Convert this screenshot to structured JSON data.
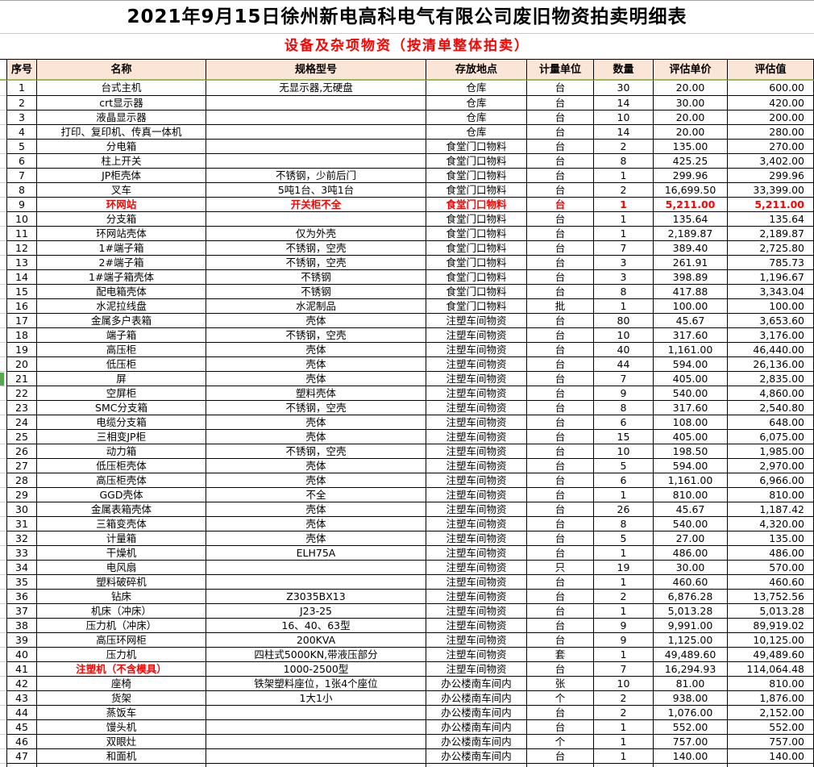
{
  "page": {
    "title": "2021年9月15日徐州新电高科电气有限公司废旧物资拍卖明细表",
    "subtitle": "设备及杂项物资（按清单整体拍卖）"
  },
  "colors": {
    "header_bg": "#FBE5D6",
    "header_underline_green": "#9BBB59",
    "highlight_red": "#FF0000",
    "row_marker_green": "#55A84F"
  },
  "table": {
    "headers": [
      "序号",
      "名称",
      "规格型号",
      "存放地点",
      "计量单位",
      "数量",
      "评估单价",
      "评估值"
    ],
    "rows": [
      {
        "no": "1",
        "name": "台式主机",
        "spec": "无显示器,无硬盘",
        "loc": "仓库",
        "unit": "台",
        "qty": "30",
        "price": "20.00",
        "value": "600.00"
      },
      {
        "no": "2",
        "name": "crt显示器",
        "spec": "",
        "loc": "仓库",
        "unit": "台",
        "qty": "14",
        "price": "30.00",
        "value": "420.00"
      },
      {
        "no": "3",
        "name": "液晶显示器",
        "spec": "",
        "loc": "仓库",
        "unit": "台",
        "qty": "10",
        "price": "20.00",
        "value": "200.00"
      },
      {
        "no": "4",
        "name": "打印、复印机、传真一体机",
        "spec": "",
        "loc": "仓库",
        "unit": "台",
        "qty": "14",
        "price": "20.00",
        "value": "280.00"
      },
      {
        "no": "5",
        "name": "分电箱",
        "spec": "",
        "loc": "食堂门口物料",
        "unit": "台",
        "qty": "2",
        "price": "135.00",
        "value": "270.00"
      },
      {
        "no": "6",
        "name": "柱上开关",
        "spec": "",
        "loc": "食堂门口物料",
        "unit": "台",
        "qty": "8",
        "price": "425.25",
        "value": "3,402.00"
      },
      {
        "no": "7",
        "name": "JP柜壳体",
        "spec": "不锈钢，少前后门",
        "loc": "食堂门口物料",
        "unit": "台",
        "qty": "1",
        "price": "299.96",
        "value": "299.96"
      },
      {
        "no": "8",
        "name": "叉车",
        "spec": "5吨1台、3吨1台",
        "loc": "食堂门口物料",
        "unit": "台",
        "qty": "2",
        "price": "16,699.50",
        "value": "33,399.00"
      },
      {
        "no": "9",
        "name": "环网站",
        "spec": "开关柜不全",
        "loc": "食堂门口物料",
        "unit": "台",
        "qty": "1",
        "price": "5,211.00",
        "value": "5,211.00",
        "highlight": "row"
      },
      {
        "no": "10",
        "name": "分支箱",
        "spec": "",
        "loc": "食堂门口物料",
        "unit": "台",
        "qty": "1",
        "price": "135.64",
        "value": "135.64"
      },
      {
        "no": "11",
        "name": "环网站壳体",
        "spec": "仅为外壳",
        "loc": "食堂门口物料",
        "unit": "台",
        "qty": "1",
        "price": "2,189.87",
        "value": "2,189.87"
      },
      {
        "no": "12",
        "name": "1#端子箱",
        "spec": "不锈钢，空壳",
        "loc": "食堂门口物料",
        "unit": "台",
        "qty": "7",
        "price": "389.40",
        "value": "2,725.80"
      },
      {
        "no": "13",
        "name": "2#端子箱",
        "spec": "不锈钢，空壳",
        "loc": "食堂门口物料",
        "unit": "台",
        "qty": "3",
        "price": "261.91",
        "value": "785.73"
      },
      {
        "no": "14",
        "name": "1#端子箱壳体",
        "spec": "不锈钢",
        "loc": "食堂门口物料",
        "unit": "台",
        "qty": "3",
        "price": "398.89",
        "value": "1,196.67"
      },
      {
        "no": "15",
        "name": "配电箱壳体",
        "spec": "不锈钢",
        "loc": "食堂门口物料",
        "unit": "台",
        "qty": "8",
        "price": "417.88",
        "value": "3,343.04"
      },
      {
        "no": "16",
        "name": "水泥拉线盘",
        "spec": "水泥制品",
        "loc": "食堂门口物料",
        "unit": "批",
        "qty": "1",
        "price": "100.00",
        "value": "100.00"
      },
      {
        "no": "17",
        "name": "金属多户表箱",
        "spec": "壳体",
        "loc": "注塑车间物资",
        "unit": "台",
        "qty": "80",
        "price": "45.67",
        "value": "3,653.60"
      },
      {
        "no": "18",
        "name": "端子箱",
        "spec": "不锈钢，空壳",
        "loc": "注塑车间物资",
        "unit": "台",
        "qty": "10",
        "price": "317.60",
        "value": "3,176.00"
      },
      {
        "no": "19",
        "name": "高压柜",
        "spec": "壳体",
        "loc": "注塑车间物资",
        "unit": "台",
        "qty": "40",
        "price": "1,161.00",
        "value": "46,440.00"
      },
      {
        "no": "20",
        "name": "低压柜",
        "spec": "壳体",
        "loc": "注塑车间物资",
        "unit": "台",
        "qty": "44",
        "price": "594.00",
        "value": "26,136.00"
      },
      {
        "no": "21",
        "name": "屏",
        "spec": "壳体",
        "loc": "注塑车间物资",
        "unit": "台",
        "qty": "7",
        "price": "405.00",
        "value": "2,835.00"
      },
      {
        "no": "22",
        "name": "空屏柜",
        "spec": "塑料壳体",
        "loc": "注塑车间物资",
        "unit": "台",
        "qty": "9",
        "price": "540.00",
        "value": "4,860.00"
      },
      {
        "no": "23",
        "name": "SMC分支箱",
        "spec": "不锈钢，空壳",
        "loc": "注塑车间物资",
        "unit": "台",
        "qty": "8",
        "price": "317.60",
        "value": "2,540.80"
      },
      {
        "no": "24",
        "name": "电缆分支箱",
        "spec": "壳体",
        "loc": "注塑车间物资",
        "unit": "台",
        "qty": "6",
        "price": "108.00",
        "value": "648.00"
      },
      {
        "no": "25",
        "name": "三相变JP柜",
        "spec": "壳体",
        "loc": "注塑车间物资",
        "unit": "台",
        "qty": "15",
        "price": "405.00",
        "value": "6,075.00"
      },
      {
        "no": "26",
        "name": "动力箱",
        "spec": "不锈钢，空壳",
        "loc": "注塑车间物资",
        "unit": "台",
        "qty": "10",
        "price": "198.50",
        "value": "1,985.00"
      },
      {
        "no": "27",
        "name": "低压柜壳体",
        "spec": "壳体",
        "loc": "注塑车间物资",
        "unit": "台",
        "qty": "5",
        "price": "594.00",
        "value": "2,970.00"
      },
      {
        "no": "28",
        "name": "高压柜壳体",
        "spec": "壳体",
        "loc": "注塑车间物资",
        "unit": "台",
        "qty": "6",
        "price": "1,161.00",
        "value": "6,966.00"
      },
      {
        "no": "29",
        "name": "GGD壳体",
        "spec": "不全",
        "loc": "注塑车间物资",
        "unit": "台",
        "qty": "1",
        "price": "810.00",
        "value": "810.00"
      },
      {
        "no": "30",
        "name": "金属表箱壳体",
        "spec": "壳体",
        "loc": "注塑车间物资",
        "unit": "台",
        "qty": "26",
        "price": "45.67",
        "value": "1,187.42"
      },
      {
        "no": "31",
        "name": "三箱变壳体",
        "spec": "壳体",
        "loc": "注塑车间物资",
        "unit": "台",
        "qty": "8",
        "price": "540.00",
        "value": "4,320.00"
      },
      {
        "no": "32",
        "name": "计量箱",
        "spec": "壳体",
        "loc": "注塑车间物资",
        "unit": "台",
        "qty": "5",
        "price": "27.00",
        "value": "135.00"
      },
      {
        "no": "33",
        "name": "干燥机",
        "spec": "ELH75A",
        "loc": "注塑车间物资",
        "unit": "台",
        "qty": "1",
        "price": "486.00",
        "value": "486.00"
      },
      {
        "no": "34",
        "name": "电风扇",
        "spec": "",
        "loc": "注塑车间物资",
        "unit": "只",
        "qty": "19",
        "price": "30.00",
        "value": "570.00"
      },
      {
        "no": "35",
        "name": "塑料破碎机",
        "spec": "",
        "loc": "注塑车间物资",
        "unit": "台",
        "qty": "1",
        "price": "460.60",
        "value": "460.60"
      },
      {
        "no": "36",
        "name": "钻床",
        "spec": "Z3035BX13",
        "loc": "注塑车间物资",
        "unit": "台",
        "qty": "2",
        "price": "6,876.28",
        "value": "13,752.56"
      },
      {
        "no": "37",
        "name": "机床（冲床）",
        "spec": "J23-25",
        "loc": "注塑车间物资",
        "unit": "台",
        "qty": "1",
        "price": "5,013.28",
        "value": "5,013.28"
      },
      {
        "no": "38",
        "name": "压力机（冲床）",
        "spec": "16、40、63型",
        "loc": "注塑车间物资",
        "unit": "台",
        "qty": "9",
        "price": "9,991.00",
        "value": "89,919.02"
      },
      {
        "no": "39",
        "name": "高压环网柜",
        "spec": "200KVA",
        "loc": "注塑车间物资",
        "unit": "台",
        "qty": "9",
        "price": "1,125.00",
        "value": "10,125.00"
      },
      {
        "no": "40",
        "name": "压力机",
        "spec": "四柱式5000KN,带液压部分",
        "loc": "注塑车间物资",
        "unit": "套",
        "qty": "1",
        "price": "49,489.60",
        "value": "49,489.60"
      },
      {
        "no": "41",
        "name": "注塑机（不含模具）",
        "spec": "1000-2500型",
        "loc": "注塑车间物资",
        "unit": "台",
        "qty": "7",
        "price": "16,294.93",
        "value": "114,064.48",
        "highlight": "name"
      },
      {
        "no": "42",
        "name": "座椅",
        "spec": "铁架塑料座位，1张4个座位",
        "loc": "办公楼南车间内",
        "unit": "张",
        "qty": "10",
        "price": "81.00",
        "value": "810.00"
      },
      {
        "no": "43",
        "name": "货架",
        "spec": "1大1小",
        "loc": "办公楼南车间内",
        "unit": "个",
        "qty": "2",
        "price": "938.00",
        "value": "1,876.00"
      },
      {
        "no": "44",
        "name": "蒸饭车",
        "spec": "",
        "loc": "办公楼南车间内",
        "unit": "台",
        "qty": "2",
        "price": "1,076.00",
        "value": "2,152.00"
      },
      {
        "no": "45",
        "name": "馒头机",
        "spec": "",
        "loc": "办公楼南车间内",
        "unit": "台",
        "qty": "1",
        "price": "552.00",
        "value": "552.00"
      },
      {
        "no": "46",
        "name": "双眼灶",
        "spec": "",
        "loc": "办公楼南车间内",
        "unit": "个",
        "qty": "1",
        "price": "757.00",
        "value": "757.00"
      },
      {
        "no": "47",
        "name": "和面机",
        "spec": "",
        "loc": "办公楼南车间内",
        "unit": "台",
        "qty": "1",
        "price": "140.00",
        "value": "140.00"
      }
    ]
  }
}
